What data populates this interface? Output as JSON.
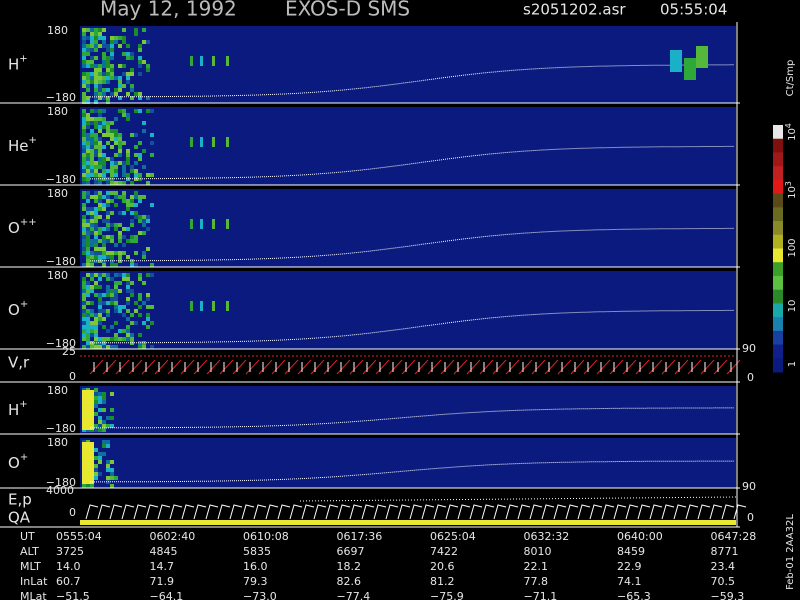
{
  "header": {
    "date": "May 12, 1992",
    "instrument": "EXOS-D SMS",
    "file": "s2051202.asr",
    "time": "05:55:04"
  },
  "panels": [
    {
      "ion": "H",
      "charge": "+",
      "top": "180",
      "bottom": "−180"
    },
    {
      "ion": "He",
      "charge": "+",
      "top": "180",
      "bottom": "−180"
    },
    {
      "ion": "O",
      "charge": "++",
      "top": "180",
      "bottom": "−180"
    },
    {
      "ion": "O",
      "charge": "+",
      "top": "180",
      "bottom": "−180"
    }
  ],
  "velocity": {
    "label": "V,r",
    "top": "25",
    "bottom": "0",
    "right_top": "90",
    "right_bottom": "0"
  },
  "panels2": [
    {
      "ion": "H",
      "charge": "+",
      "top": "180",
      "bottom": "−180"
    },
    {
      "ion": "O",
      "charge": "+",
      "top": "180",
      "bottom": "−180"
    }
  ],
  "energy": {
    "label1": "E,p",
    "label2": "QA",
    "top": "4000",
    "bottom": "0",
    "right_top": "90",
    "right_bottom": "0"
  },
  "colorbar": {
    "unit": "Ct/Smp",
    "labels": [
      {
        "base": "10",
        "exp": "4"
      },
      {
        "base": "10",
        "exp": "3"
      },
      {
        "base": "100"
      },
      {
        "base": "10"
      },
      {
        "base": "1"
      }
    ]
  },
  "table": {
    "rows": [
      [
        "UT",
        "0555:04",
        "0602:40",
        "0610:08",
        "0617:36",
        "0625:04",
        "0632:32",
        "0640:00",
        "0647:28"
      ],
      [
        "ALT",
        "3725",
        "4845",
        "5835",
        "6697",
        "7422",
        "8010",
        "8459",
        "8771"
      ],
      [
        "MLT",
        "14.0",
        "14.7",
        "16.0",
        "18.2",
        "20.6",
        "22.1",
        "22.9",
        "23.4"
      ],
      [
        "InLat",
        "60.7",
        "71.9",
        "79.3",
        "82.6",
        "81.2",
        "77.8",
        "74.1",
        "70.5"
      ],
      [
        "MLat",
        "−51.5",
        "−64.1",
        "−73.0",
        "−77.4",
        "−75.9",
        "−71.1",
        "−65.3",
        "−59.3"
      ]
    ]
  },
  "footer": "Feb-01 2AA32L"
}
